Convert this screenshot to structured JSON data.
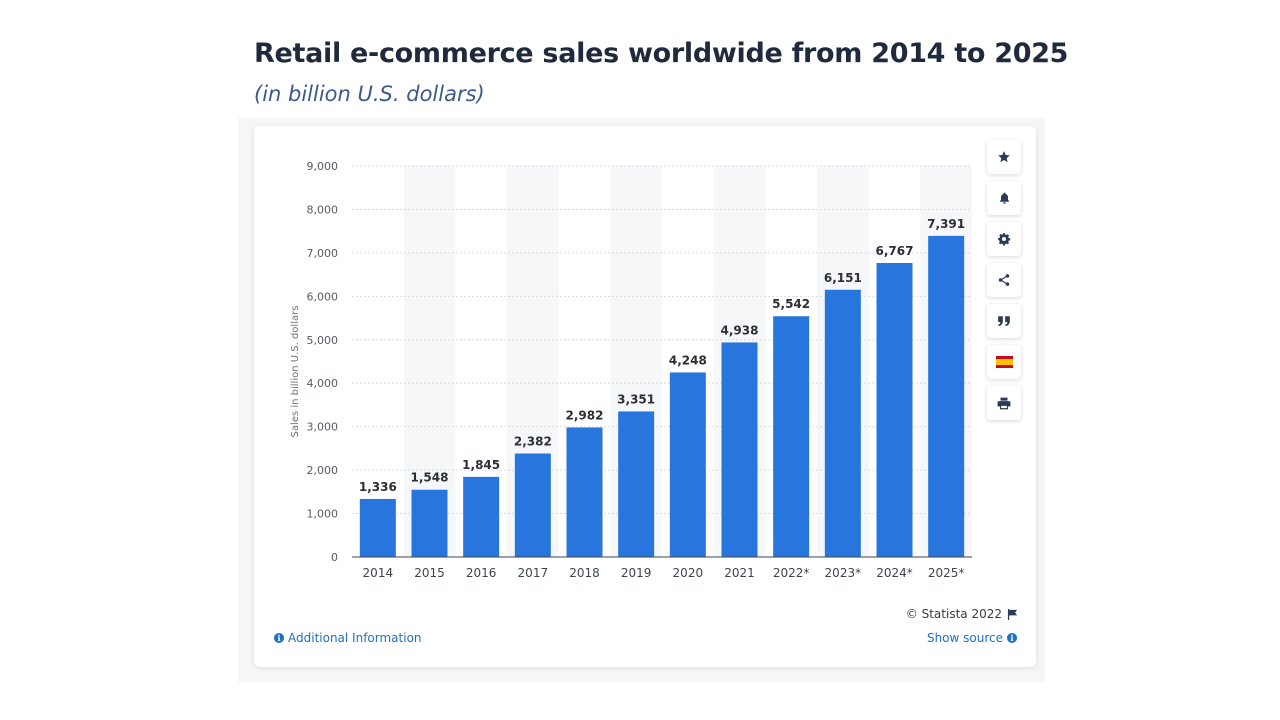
{
  "header": {
    "title": "Retail e-commerce sales worldwide from 2014 to 2025",
    "subtitle": "(in billion U.S. dollars)"
  },
  "chart_data": {
    "type": "bar",
    "categories": [
      "2014",
      "2015",
      "2016",
      "2017",
      "2018",
      "2019",
      "2020",
      "2021",
      "2022*",
      "2023*",
      "2024*",
      "2025*"
    ],
    "values": [
      1336,
      1548,
      1845,
      2382,
      2982,
      3351,
      4248,
      4938,
      5542,
      6151,
      6767,
      7391
    ],
    "value_labels": [
      "1,336",
      "1,548",
      "1,845",
      "2,382",
      "2,982",
      "3,351",
      "4,248",
      "4,938",
      "5,542",
      "6,151",
      "6,767",
      "7,391"
    ],
    "ylabel": "Sales in billion U.S. dollars",
    "xlabel": "",
    "ylim": [
      0,
      9000
    ],
    "yticks": [
      0,
      1000,
      2000,
      3000,
      4000,
      5000,
      6000,
      7000,
      8000,
      9000
    ],
    "ytick_labels": [
      "0",
      "1,000",
      "2,000",
      "3,000",
      "4,000",
      "5,000",
      "6,000",
      "7,000",
      "8,000",
      "9,000"
    ],
    "grid": true,
    "bar_color": "#2876dd",
    "alternating_column_shading": true
  },
  "toolbar": {
    "buttons": [
      {
        "name": "favorite-button",
        "icon": "star-icon"
      },
      {
        "name": "notification-button",
        "icon": "bell-icon"
      },
      {
        "name": "settings-button",
        "icon": "gear-icon"
      },
      {
        "name": "share-button",
        "icon": "share-icon"
      },
      {
        "name": "cite-button",
        "icon": "quote-icon"
      },
      {
        "name": "language-button",
        "icon": "spain-flag-icon"
      },
      {
        "name": "print-button",
        "icon": "printer-icon"
      }
    ]
  },
  "footer": {
    "credit": "© Statista 2022",
    "additional_info": "Additional Information",
    "show_source": "Show source"
  },
  "colors": {
    "accent": "#1f6fc5",
    "bar": "#2876dd",
    "title": "#1f2a3c",
    "subtitle": "#3c5a88"
  }
}
